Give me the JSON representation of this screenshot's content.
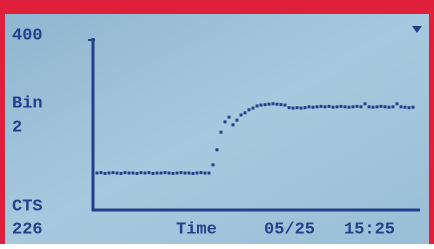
{
  "chart_data": {
    "type": "dots",
    "yticks": [
      400
    ],
    "ylim": [
      0,
      400
    ],
    "channel_label": "Bin",
    "channel": "2",
    "counts_label": "CTS",
    "counts": 226,
    "x_label": "Time",
    "date": "05/25",
    "time": "15:25",
    "color": "#23408a",
    "values": [
      86,
      87,
      85,
      86,
      87,
      86,
      85,
      87,
      86,
      86,
      85,
      87,
      86,
      87,
      85,
      86,
      86,
      87,
      86,
      85,
      86,
      87,
      86,
      86,
      85,
      86,
      87,
      86,
      86,
      105,
      140,
      181,
      205,
      216,
      198,
      209,
      221,
      226,
      233,
      237,
      242,
      244,
      245,
      246,
      247,
      246,
      245,
      244,
      238,
      237,
      238,
      237,
      238,
      240,
      239,
      240,
      241,
      240,
      241,
      239,
      240,
      241,
      240,
      239,
      240,
      241,
      240,
      247,
      240,
      239,
      240,
      241,
      240,
      239,
      240,
      247,
      240,
      239,
      238,
      239
    ]
  }
}
